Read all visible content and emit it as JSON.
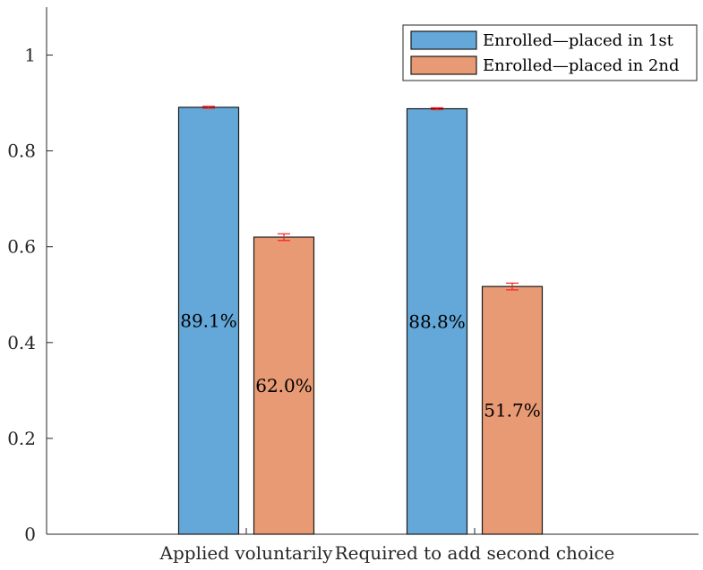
{
  "chart_data": {
    "type": "bar",
    "categories": [
      "Applied voluntarily",
      "Required to add second choice"
    ],
    "series": [
      {
        "name": "Enrolled—placed in 1st",
        "values": [
          0.891,
          0.888
        ],
        "errors": [
          0.002,
          0.002
        ],
        "labels": [
          "89.1%",
          "88.8%"
        ],
        "color": "#63a8d8"
      },
      {
        "name": "Enrolled—placed in 2nd",
        "values": [
          0.62,
          0.517
        ],
        "errors": [
          0.007,
          0.007
        ],
        "labels": [
          "62.0%",
          "51.7%"
        ],
        "color": "#e79a74"
      }
    ],
    "ylim": [
      0,
      1.1
    ],
    "yticks": [
      0,
      0.2,
      0.4,
      0.6,
      0.8,
      1
    ],
    "ytick_labels": [
      "0",
      "0.2",
      "0.4",
      "0.6",
      "0.8",
      "1"
    ],
    "error_bar_color": "#ff2020",
    "grid": false,
    "legend_position": "top-right",
    "title": "",
    "xlabel": "",
    "ylabel": ""
  }
}
